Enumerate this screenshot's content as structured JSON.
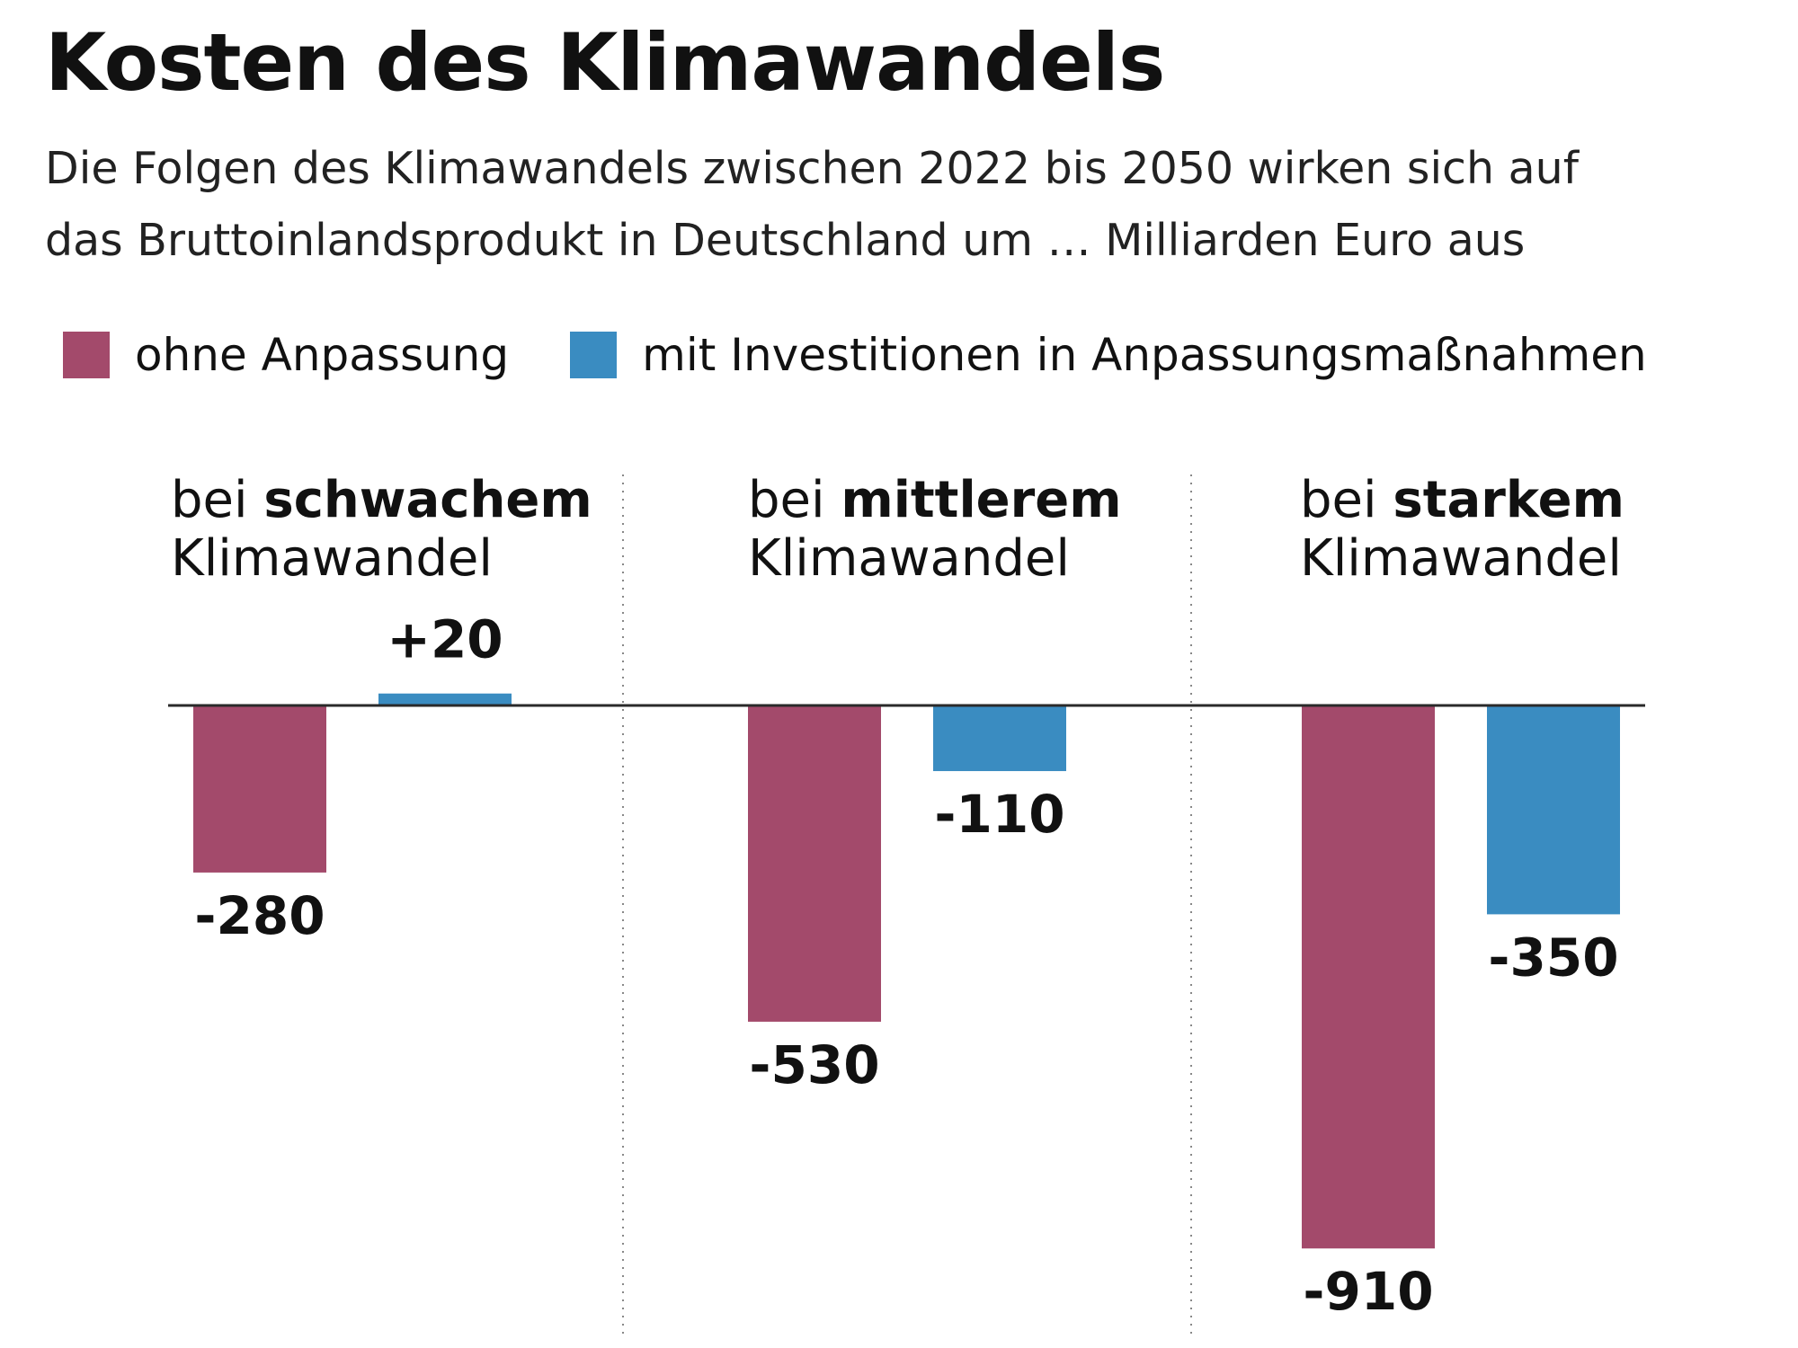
{
  "title": "Kosten des Klimawandels",
  "subtitle_lines": [
    "Die Folgen des Klimawandels zwischen 2022 bis 2050 wirken sich auf",
    "das Bruttoinlandsprodukt in Deutschland um … Milliarden Euro aus"
  ],
  "colors": {
    "ohne": "#a34a6b",
    "mit": "#3a8cc1",
    "axis": "#2a2a2a",
    "divider": "#888888"
  },
  "legend": {
    "ohne_label": "ohne Anpassung",
    "mit_label": "mit Investitionen in Anpassungsmaßnahmen"
  },
  "chart_data": {
    "type": "bar",
    "title": "Kosten des Klimawandels",
    "unit": "Milliarden Euro",
    "categories": [
      {
        "prefix": "bei ",
        "bold": "schwachem",
        "line2": "Klimawandel"
      },
      {
        "prefix": "bei ",
        "bold": "mittlerem",
        "line2": "Klimawandel"
      },
      {
        "prefix": "bei ",
        "bold": "starkem",
        "line2": "Klimawandel"
      }
    ],
    "series": [
      {
        "name": "ohne Anpassung",
        "values": [
          -280,
          -530,
          -910
        ],
        "labels": [
          "-280",
          "-530",
          "-910"
        ]
      },
      {
        "name": "mit Investitionen in Anpassungsmaßnahmen",
        "values": [
          20,
          -110,
          -350
        ],
        "labels": [
          "+20",
          "-110",
          "-350"
        ]
      }
    ],
    "ylim": [
      -910,
      20
    ],
    "grid": false,
    "legend_position": "top-left"
  }
}
